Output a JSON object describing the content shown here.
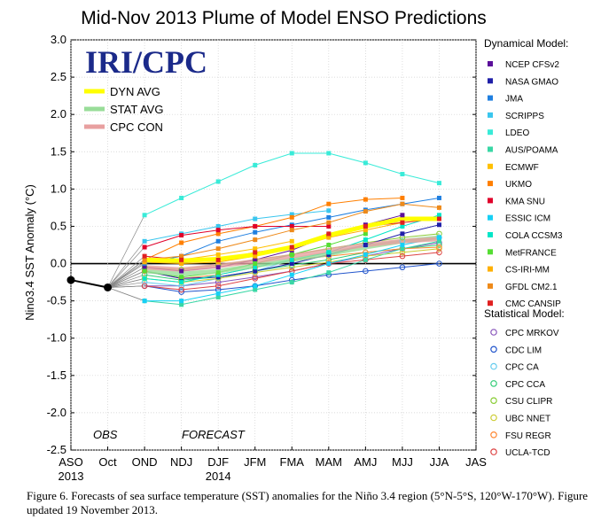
{
  "caption": "Figure 6. Forecasts of sea surface temperature (SST) anomalies for the Niño 3.4 region (5°N-5°S, 120°W-170°W).  Figure updated 19 November 2013.",
  "logo_text": "IRI/CPC",
  "chart_data": {
    "type": "line",
    "title": "Mid-Nov 2013 Plume of Model ENSO Predictions",
    "ylabel": "Nino3.4 SST Anomaly (°C)",
    "xlabel": "",
    "ylim": [
      -2.5,
      3.0
    ],
    "yticks": [
      "3.0",
      "2.5",
      "2.0",
      "1.5",
      "1.0",
      "0.5",
      "0.0",
      "-0.5",
      "-1.0",
      "-1.5",
      "-2.0",
      "-2.5"
    ],
    "categories": [
      "ASO",
      "Oct",
      "OND",
      "NDJ",
      "DJF",
      "JFM",
      "FMA",
      "MAM",
      "AMJ",
      "MJJ",
      "JJA",
      "JAS"
    ],
    "year_labels": [
      {
        "at": "ASO",
        "text": "2013"
      },
      {
        "at": "DJF",
        "text": "2014"
      }
    ],
    "period_labels": {
      "obs": "OBS",
      "forecast": "FORECAST"
    },
    "grid": true,
    "observed": {
      "x": [
        "ASO",
        "Oct"
      ],
      "values": [
        -0.22,
        -0.32
      ],
      "color": "#000000"
    },
    "inset_legend": [
      {
        "name": "DYN AVG",
        "color": "#ffff00"
      },
      {
        "name": "STAT AVG",
        "color": "#99dd99"
      },
      {
        "name": "CPC CON",
        "color": "#e8a0a0"
      }
    ],
    "averages": [
      {
        "name": "DYN AVG",
        "color": "#ffff00",
        "values": [
          0.05,
          0.04,
          0.06,
          0.12,
          0.22,
          0.38,
          0.5,
          0.6,
          0.6
        ]
      },
      {
        "name": "STAT AVG",
        "color": "#99dd99",
        "values": [
          -0.1,
          -0.14,
          -0.1,
          -0.03,
          0.05,
          0.13,
          0.22,
          0.3,
          0.35
        ]
      },
      {
        "name": "CPC CON",
        "color": "#e8a0a0",
        "values": [
          -0.05,
          -0.08,
          -0.03,
          0.03,
          0.1,
          0.18,
          0.25,
          0.3,
          0.33
        ]
      }
    ],
    "dynamical_heading": "Dynamical Model:",
    "statistical_heading": "Statistical Model:",
    "dynamical_models": [
      {
        "name": "NCEP CFSv2",
        "color": "#5b0f9a",
        "values": [
          -0.05,
          -0.1,
          -0.05,
          0.05,
          0.18,
          0.38,
          0.52,
          0.65,
          null
        ]
      },
      {
        "name": "NASA GMAO",
        "color": "#1f1fa8",
        "values": [
          -0.1,
          -0.2,
          -0.18,
          -0.1,
          0.0,
          0.12,
          0.25,
          0.4,
          0.52
        ]
      },
      {
        "name": "JMA",
        "color": "#1f7fe0",
        "values": [
          0.0,
          0.1,
          0.3,
          0.42,
          0.52,
          0.62,
          0.72,
          0.8,
          0.88
        ]
      },
      {
        "name": "SCRIPPS",
        "color": "#3ac6ee",
        "values": [
          0.3,
          0.4,
          0.5,
          0.6,
          0.66,
          0.71,
          null,
          null,
          null
        ]
      },
      {
        "name": "LDEO",
        "color": "#39ebd8",
        "values": [
          0.65,
          0.88,
          1.1,
          1.32,
          1.48,
          1.48,
          1.35,
          1.2,
          1.08
        ]
      },
      {
        "name": "AUS/POAMA",
        "color": "#39d7a5",
        "values": [
          -0.5,
          -0.55,
          -0.45,
          -0.35,
          -0.25,
          -0.12,
          0.05,
          0.2,
          0.3
        ]
      },
      {
        "name": "ECMWF",
        "color": "#ffc000",
        "values": [
          0.05,
          0.05,
          0.12,
          0.2,
          0.3,
          null,
          null,
          null,
          null
        ]
      },
      {
        "name": "UKMO",
        "color": "#ff7f00",
        "values": [
          0.05,
          0.28,
          0.4,
          0.5,
          0.62,
          0.8,
          0.86,
          0.88,
          null
        ]
      },
      {
        "name": "KMA SNU",
        "color": "#e0002a",
        "values": [
          0.22,
          0.38,
          0.45,
          0.5,
          0.5,
          0.5,
          null,
          null,
          null
        ]
      },
      {
        "name": "ESSIC ICM",
        "color": "#17d0f5",
        "values": [
          -0.5,
          -0.5,
          -0.4,
          -0.3,
          -0.15,
          0.0,
          0.12,
          0.25,
          0.35
        ]
      },
      {
        "name": "COLA CCSM3",
        "color": "#00e6c8",
        "values": [
          -0.2,
          -0.25,
          -0.15,
          -0.05,
          0.05,
          0.15,
          0.32,
          0.5,
          0.65
        ]
      },
      {
        "name": "MetFRANCE",
        "color": "#55dd33",
        "values": [
          -0.1,
          -0.18,
          -0.12,
          0.0,
          0.12,
          0.25,
          0.4,
          null,
          null
        ]
      },
      {
        "name": "CS-IRI-MM",
        "color": "#ffb000",
        "values": [
          0.02,
          0.0,
          0.02,
          0.1,
          0.2,
          0.35,
          0.45,
          0.55,
          null
        ]
      },
      {
        "name": "GFDL CM2.1",
        "color": "#ee8a1a",
        "values": [
          0.05,
          0.1,
          0.2,
          0.32,
          0.45,
          0.55,
          0.7,
          0.8,
          0.75
        ]
      },
      {
        "name": "CMC CANSIP",
        "color": "#e02020",
        "values": [
          0.1,
          0.05,
          0.05,
          0.15,
          0.22,
          0.4,
          0.5,
          0.55,
          0.6
        ]
      }
    ],
    "statistical_models": [
      {
        "name": "CPC MRKOV",
        "color": "#8855bb",
        "values": [
          -0.3,
          -0.3,
          -0.25,
          -0.18,
          -0.1,
          0.0,
          0.1,
          0.2,
          0.28
        ]
      },
      {
        "name": "CDC LIM",
        "color": "#2255cc",
        "values": [
          -0.3,
          -0.38,
          -0.35,
          -0.3,
          -0.22,
          -0.15,
          -0.1,
          -0.05,
          0.0
        ]
      },
      {
        "name": "CPC CA",
        "color": "#66ccee",
        "values": [
          -0.25,
          -0.3,
          -0.2,
          -0.1,
          0.05,
          0.15,
          0.25,
          0.3,
          0.35
        ]
      },
      {
        "name": "CPC CCA",
        "color": "#33cc77",
        "values": [
          -0.15,
          -0.22,
          -0.18,
          -0.1,
          -0.02,
          0.05,
          0.15,
          0.2,
          0.25
        ]
      },
      {
        "name": "CSU CLIPR",
        "color": "#88cc33",
        "values": [
          -0.05,
          -0.08,
          -0.02,
          0.05,
          0.12,
          0.2,
          0.28,
          0.35,
          0.4
        ]
      },
      {
        "name": "UBC NNET",
        "color": "#cccc33",
        "values": [
          -0.2,
          -0.25,
          -0.2,
          -0.12,
          -0.05,
          0.02,
          0.1,
          0.15,
          0.2
        ]
      },
      {
        "name": "FSU REGR",
        "color": "#ff8833",
        "values": [
          -0.1,
          -0.2,
          -0.15,
          -0.05,
          0.05,
          0.1,
          0.15,
          0.2,
          0.22
        ]
      },
      {
        "name": "UCLA-TCD",
        "color": "#dd4444",
        "values": [
          -0.3,
          -0.35,
          -0.3,
          -0.2,
          -0.1,
          0.0,
          0.05,
          0.1,
          0.15
        ]
      }
    ]
  }
}
